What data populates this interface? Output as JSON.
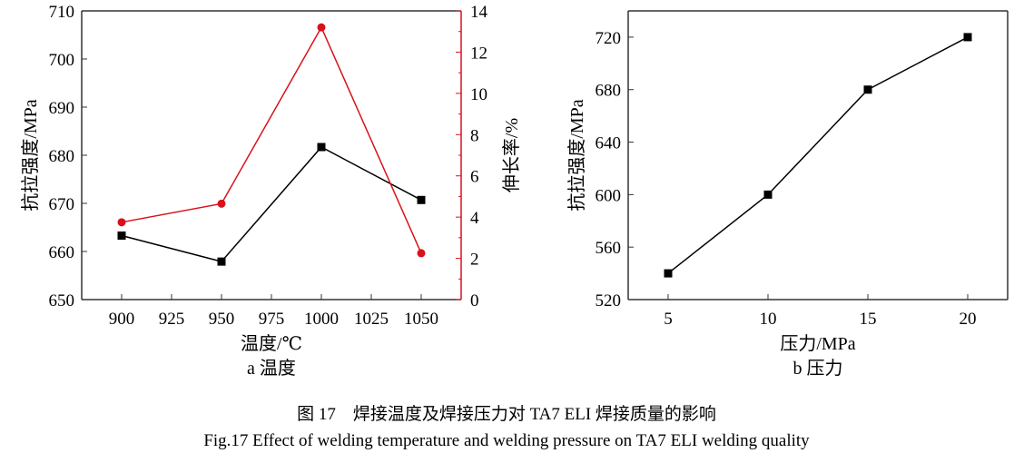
{
  "chart_data": [
    {
      "type": "line",
      "panel_label": "a 温度",
      "xlabel": "温度/℃",
      "ylabel": "抗拉强度/MPa",
      "y2label": "伸长率/%",
      "x": [
        900,
        950,
        1000,
        1050
      ],
      "xticks": [
        "900",
        "925",
        "950",
        "975",
        "1000",
        "1025",
        "1050"
      ],
      "xlim": [
        880,
        1070
      ],
      "ylim": [
        650,
        710
      ],
      "yticks": [
        "650",
        "660",
        "670",
        "680",
        "690",
        "700",
        "710"
      ],
      "y2lim": [
        0,
        14
      ],
      "y2ticks": [
        "0",
        "2",
        "4",
        "6",
        "8",
        "10",
        "12",
        "14"
      ],
      "grid": false,
      "series": [
        {
          "axis": "left",
          "marker": "square",
          "color": "#000000",
          "values": [
            663.3,
            657.9,
            681.7,
            670.7
          ]
        },
        {
          "axis": "right",
          "marker": "circle",
          "color": "#d9111b",
          "values": [
            3.75,
            4.65,
            13.2,
            2.25
          ]
        }
      ]
    },
    {
      "type": "line",
      "panel_label": "b 压力",
      "xlabel": "压力/MPa",
      "ylabel": "抗拉强度/MPa",
      "x": [
        5,
        10,
        15,
        20
      ],
      "xticks": [
        "5",
        "10",
        "15",
        "20"
      ],
      "xlim": [
        3,
        22
      ],
      "ylim": [
        520,
        740
      ],
      "yticks": [
        "520",
        "560",
        "600",
        "640",
        "680",
        "720"
      ],
      "grid": false,
      "series": [
        {
          "marker": "square",
          "color": "#000000",
          "values": [
            540,
            600,
            680,
            720
          ]
        }
      ]
    }
  ],
  "caption": {
    "cn": "图 17　焊接温度及焊接压力对 TA7 ELI 焊接质量的影响",
    "en": "Fig.17 Effect of welding temperature and welding pressure on TA7 ELI welding quality"
  }
}
